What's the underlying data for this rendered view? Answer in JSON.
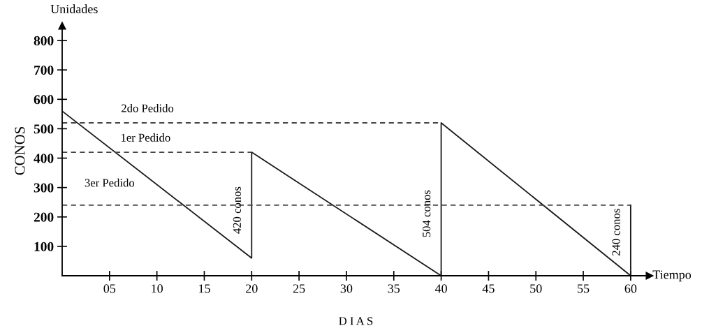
{
  "chart_data": {
    "type": "line",
    "xlabel": "D I A S",
    "ylabel": "CONOS",
    "xlim": [
      0,
      62
    ],
    "ylim": [
      0,
      850
    ],
    "xticks": [
      {
        "value": 5,
        "label": "05"
      },
      10,
      15,
      20,
      25,
      30,
      35,
      40,
      45,
      50,
      55,
      60
    ],
    "yticks": [
      100,
      200,
      300,
      400,
      500,
      600,
      700,
      800
    ],
    "grid": false,
    "legend": false,
    "marker": "none",
    "series": [
      {
        "color": "#1a1a1a",
        "x": [
          0,
          20,
          20,
          40,
          40,
          60
        ],
        "values": [
          560,
          60,
          420,
          0,
          520,
          0
        ],
        "line_style": "solid"
      },
      {
        "color": "#444444",
        "x": [
          0,
          40
        ],
        "values": [
          520,
          520
        ],
        "line_style": "dashed"
      },
      {
        "color": "#444444",
        "x": [
          0,
          20
        ],
        "values": [
          420,
          420
        ],
        "line_style": "dashed"
      },
      {
        "color": "#444444",
        "x": [
          0,
          60
        ],
        "values": [
          240,
          240
        ],
        "line_style": "dashed"
      },
      {
        "color": "#1a1a1a",
        "x": [
          60,
          60
        ],
        "values": [
          0,
          240
        ],
        "line_style": "solid"
      }
    ],
    "annotations": [
      "Unidades",
      "Tiempo",
      {
        "text": "2do Pedido",
        "x": 9,
        "y": 520
      },
      {
        "text": "1er Pedido",
        "x": 8.8,
        "y": 420
      },
      {
        "text": "3er Pedido",
        "x": 5,
        "y": 240
      },
      {
        "text": "420 conos",
        "x": 20,
        "y": 223
      },
      {
        "text": "504 conos",
        "x": 40,
        "y": 211
      },
      {
        "text": "240 conos",
        "x": 60,
        "y": 148
      }
    ]
  }
}
